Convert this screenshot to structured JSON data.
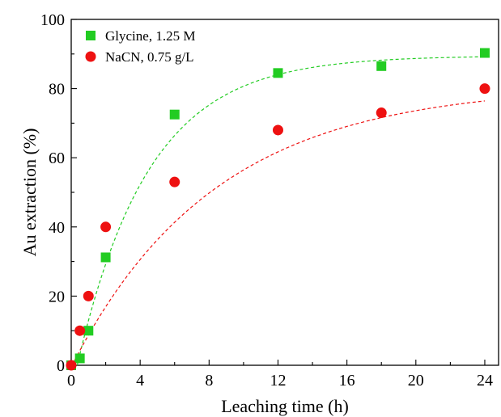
{
  "chart_data": {
    "type": "scatter",
    "title": "",
    "xlabel": "Leaching time (h)",
    "ylabel": "Au extraction (%)",
    "xlim": [
      0,
      24.8
    ],
    "ylim": [
      0,
      100
    ],
    "xticks": [
      0,
      4,
      8,
      12,
      16,
      20,
      24
    ],
    "yticks": [
      0,
      20,
      40,
      60,
      80,
      100
    ],
    "grid": false,
    "legend_position": "top-left",
    "series": [
      {
        "name": "Glycine, 1.25 M",
        "marker": "square",
        "color": "#22cc22",
        "points": [
          [
            0,
            0
          ],
          [
            0.5,
            2
          ],
          [
            1,
            10
          ],
          [
            2,
            31.2
          ],
          [
            6,
            72.5
          ],
          [
            12,
            84.5
          ],
          [
            18,
            86.5
          ],
          [
            24,
            90.3
          ]
        ],
        "fit": {
          "plateau": 89.5,
          "rate": 0.24,
          "lag": 0.35
        }
      },
      {
        "name": "NaCN, 0.75 g/L",
        "marker": "circle",
        "color": "#ee1111",
        "points": [
          [
            0,
            0
          ],
          [
            0.5,
            10
          ],
          [
            1,
            20
          ],
          [
            2,
            40
          ],
          [
            6,
            53
          ],
          [
            12,
            68
          ],
          [
            18,
            73
          ],
          [
            24,
            80
          ]
        ],
        "fit": {
          "plateau": 81,
          "rate": 0.12,
          "lag": 0.05
        }
      }
    ]
  }
}
